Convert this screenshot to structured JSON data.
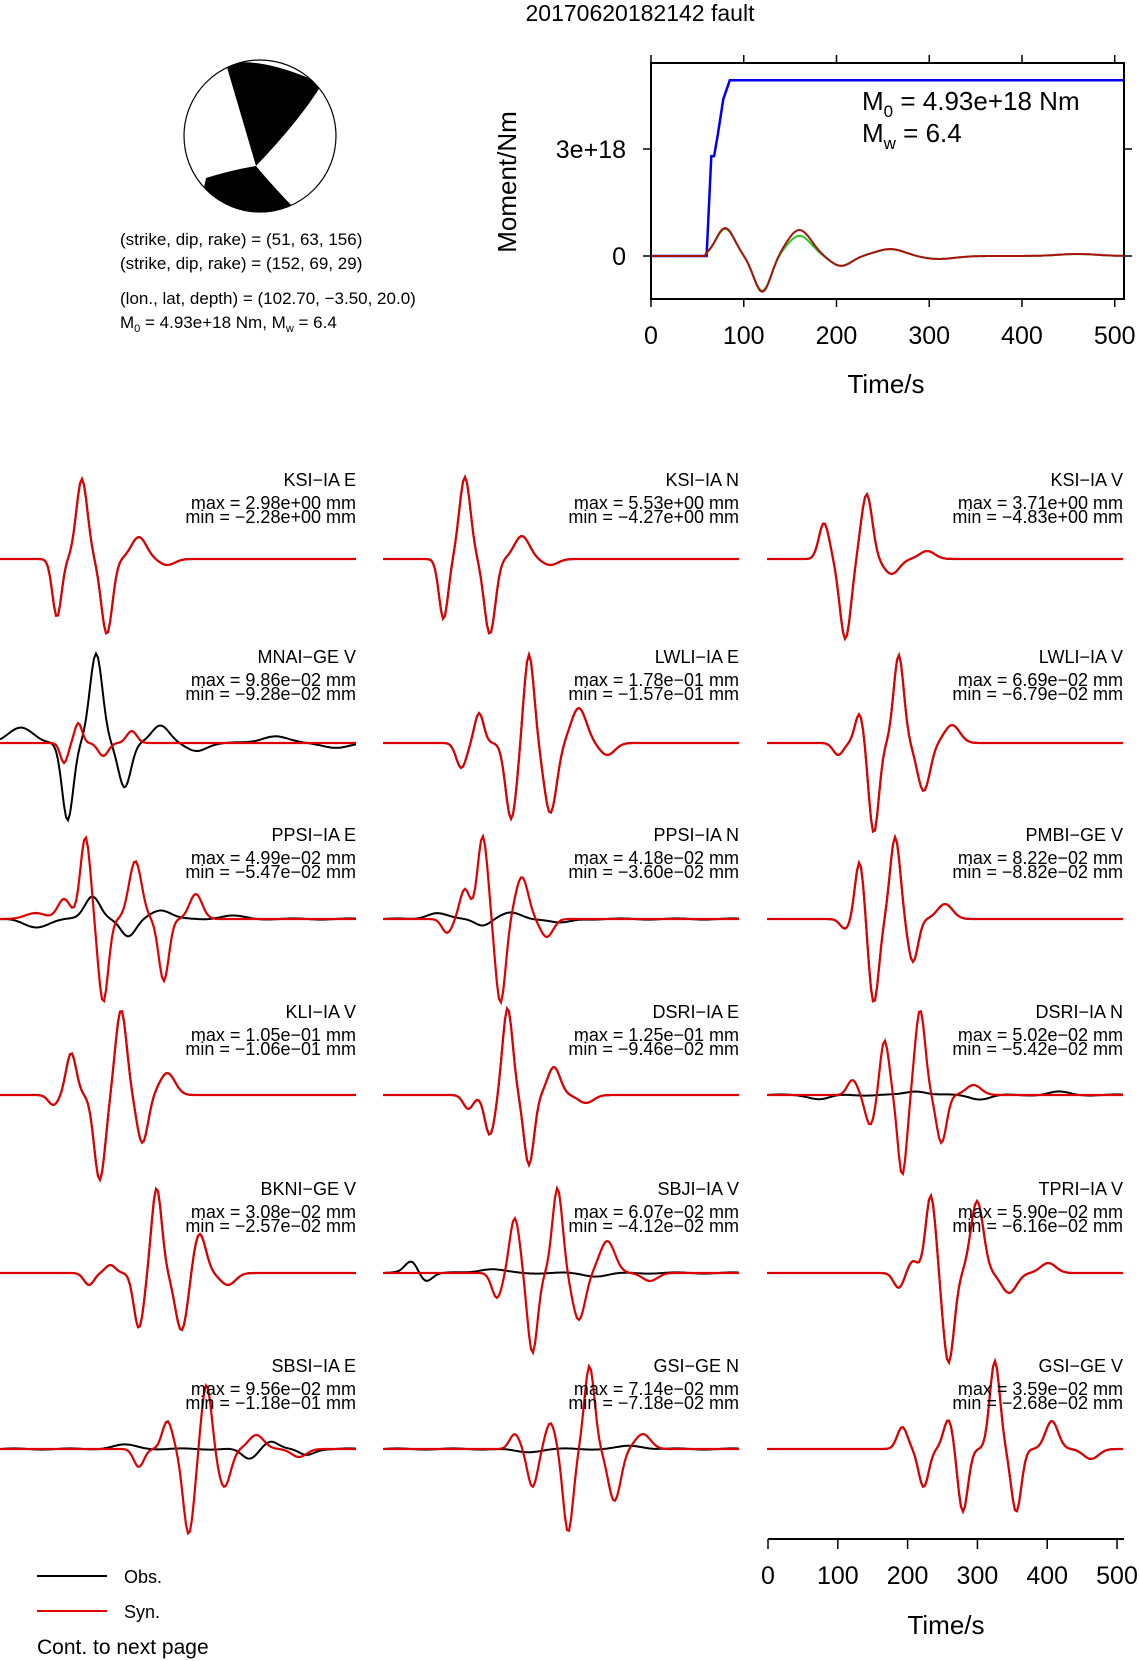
{
  "title": "20170620182142 fault",
  "mechanism": {
    "planes": [
      {
        "label": "(strike, dip, rake) = (51, 63, 156)"
      },
      {
        "label": "(strike, dip, rake) = (152, 69, 29)"
      }
    ],
    "location_label": "(lon., lat, depth) = (102.70, −3.50, 20.0)",
    "moment_prefix": "M",
    "moment_sub": "0",
    "moment_mid": " = 4.93e+18 Nm, M",
    "mw_sub": "w",
    "mw_end": " = 6.4"
  },
  "moment_plot": {
    "ylabel": "Moment/Nm",
    "xlabel": "Time/s",
    "xticks": [
      "0",
      "100",
      "200",
      "300",
      "400",
      "500"
    ],
    "ytick_labels": [
      "3e+18",
      "0"
    ],
    "m0_prefix": "M",
    "m0_sub": "0",
    "m0_rest": " = 4.93e+18 Nm",
    "mw_prefix": "M",
    "mw_sub": "w",
    "mw_rest": " = 6.4",
    "colors": {
      "cumulative": "#0000ee",
      "rate_red": "#dd0000",
      "rate_green": "#22cc22"
    }
  },
  "waveform_axis": {
    "xlabel": "Time/s",
    "xticks": [
      "0",
      "100",
      "200",
      "300",
      "400",
      "500"
    ]
  },
  "legend": {
    "obs": "Obs.",
    "syn": "Syn.",
    "obs_color": "#000000",
    "syn_color": "#dd0000"
  },
  "footer": "Cont. to next page",
  "chart_data": [
    {
      "type": "line",
      "title": "",
      "xlabel": "Time/s",
      "ylabel": "Moment/Nm",
      "xlim": [
        0,
        510
      ],
      "series": [
        {
          "name": "",
          "x": [
            0,
            60,
            65,
            68,
            72,
            78,
            85,
            90,
            510
          ],
          "values": [
            0,
            0,
            2.8e+18,
            2.8e+18,
            3.4e+18,
            4.4e+18,
            4.93e+18,
            4.93e+18,
            4.93e+18
          ]
        }
      ]
    },
    {
      "type": "line",
      "title": "",
      "stations": [
        {
          "name": "KSI−IA E",
          "max": "max = 2.98e+00 mm",
          "min": "min = −2.28e+00 mm"
        },
        {
          "name": "KSI−IA N",
          "max": "max = 5.53e+00 mm",
          "min": "min = −4.27e+00 mm"
        },
        {
          "name": "KSI−IA V",
          "max": "max = 3.71e+00 mm",
          "min": "min = −4.83e+00 mm"
        },
        {
          "name": "MNAI−GE V",
          "max": "max = 9.86e−02 mm",
          "min": "min = −9.28e−02 mm"
        },
        {
          "name": "LWLI−IA E",
          "max": "max = 1.78e−01 mm",
          "min": "min = −1.57e−01 mm"
        },
        {
          "name": "LWLI−IA V",
          "max": "max = 6.69e−02 mm",
          "min": "min = −6.79e−02 mm"
        },
        {
          "name": "PPSI−IA E",
          "max": "max = 4.99e−02 mm",
          "min": "min = −5.47e−02 mm"
        },
        {
          "name": "PPSI−IA N",
          "max": "max = 4.18e−02 mm",
          "min": "min = −3.60e−02 mm"
        },
        {
          "name": "PMBI−GE V",
          "max": "max = 8.22e−02 mm",
          "min": "min = −8.82e−02 mm"
        },
        {
          "name": "KLI−IA V",
          "max": "max = 1.05e−01 mm",
          "min": "min = −1.06e−01 mm"
        },
        {
          "name": "DSRI−IA E",
          "max": "max = 1.25e−01 mm",
          "min": "min = −9.46e−02 mm"
        },
        {
          "name": "DSRI−IA N",
          "max": "max = 5.02e−02 mm",
          "min": "min = −5.42e−02 mm"
        },
        {
          "name": "BKNI−GE V",
          "max": "max = 3.08e−02 mm",
          "min": "min = −2.57e−02 mm"
        },
        {
          "name": "SBJI−IA V",
          "max": "max = 6.07e−02 mm",
          "min": "min = −4.12e−02 mm"
        },
        {
          "name": "TPRI−IA V",
          "max": "max = 5.90e−02 mm",
          "min": "min = −6.16e−02 mm"
        },
        {
          "name": "SBSI−IA E",
          "max": "max = 9.56e−02 mm",
          "min": "min = −1.18e−01 mm"
        },
        {
          "name": "GSI−GE N",
          "max": "max = 7.14e−02 mm",
          "min": "min = −7.18e−02 mm"
        },
        {
          "name": "GSI−GE V",
          "max": "max = 3.59e−02 mm",
          "min": "min = −2.68e−02 mm"
        }
      ]
    }
  ]
}
